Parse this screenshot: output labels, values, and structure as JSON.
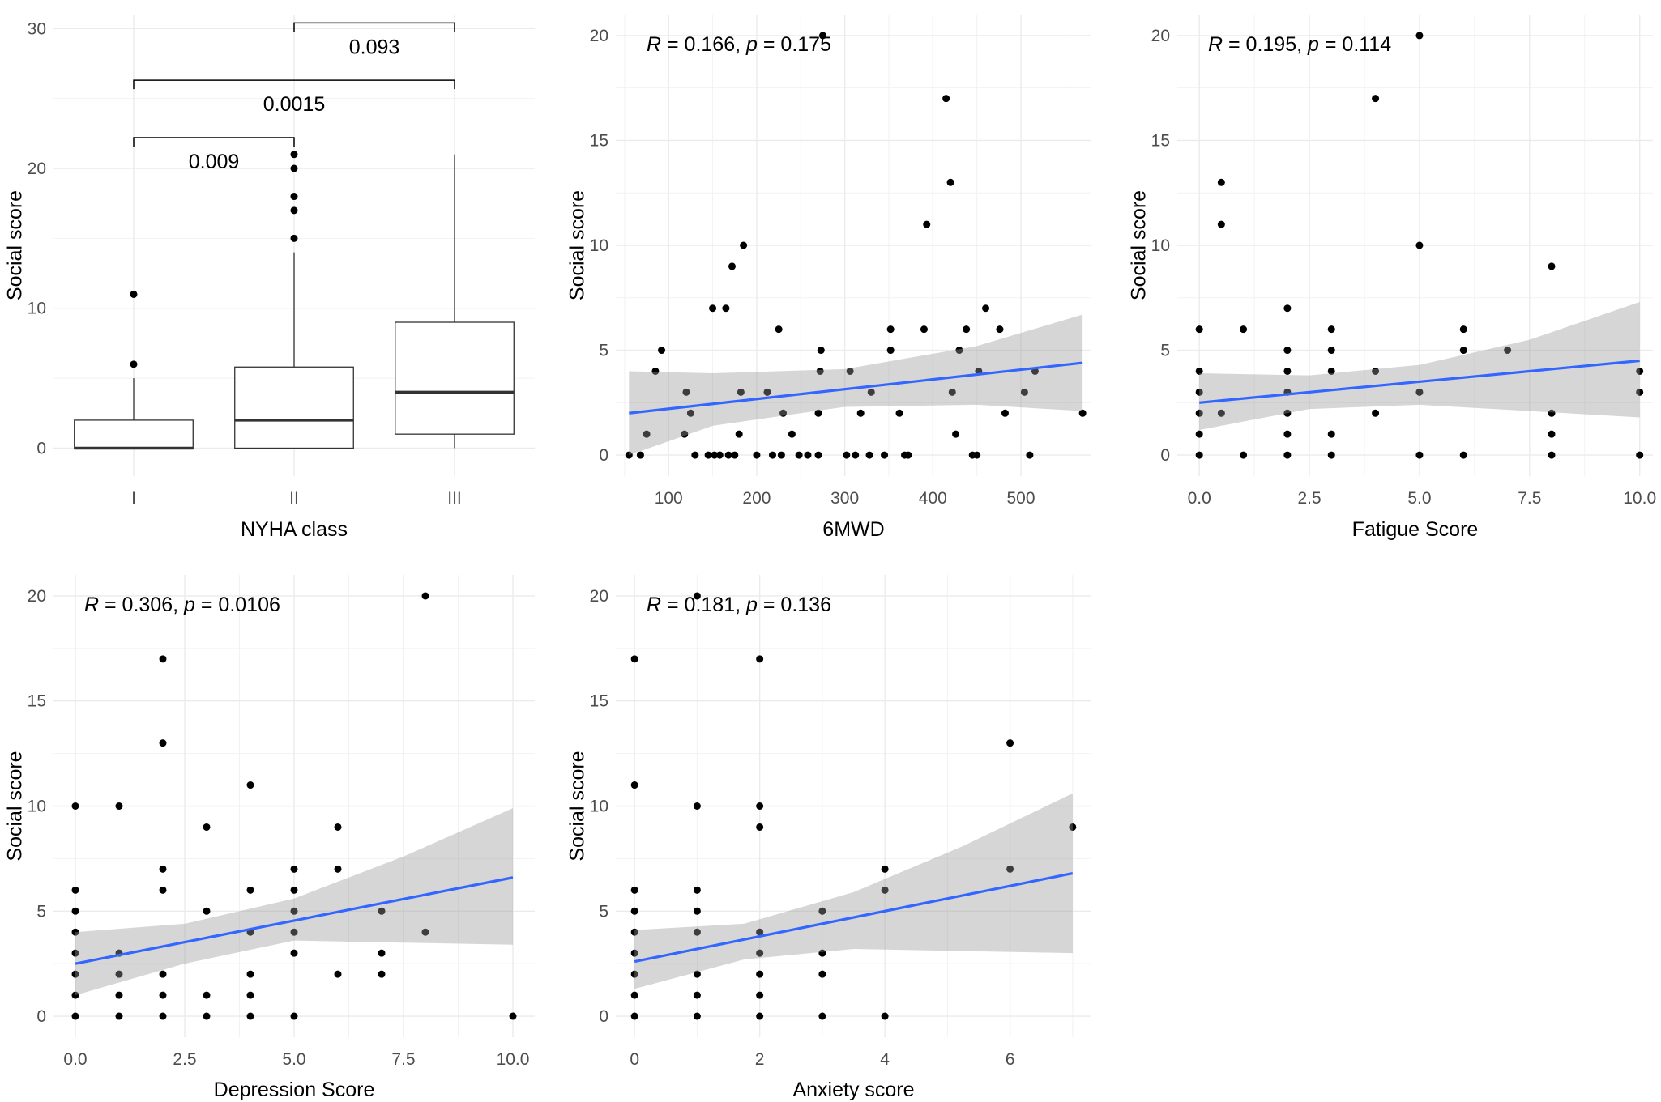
{
  "chart_data": [
    {
      "id": "p1",
      "type": "box",
      "xlabel": "NYHA class",
      "ylabel": "Social score",
      "ylim": [
        -2,
        31
      ],
      "yticks": [
        0,
        10,
        20,
        30
      ],
      "categories": [
        "I",
        "II",
        "III"
      ],
      "boxes": [
        {
          "category": "I",
          "q1": 0,
          "median": 0,
          "q3": 2,
          "whisker_low": 0,
          "whisker_high": 5,
          "outliers": [
            6,
            11
          ]
        },
        {
          "category": "II",
          "q1": 0,
          "median": 2,
          "q3": 5.8,
          "whisker_low": 0,
          "whisker_high": 14,
          "outliers": [
            15,
            17,
            18,
            20,
            21
          ]
        },
        {
          "category": "III",
          "q1": 1,
          "median": 4,
          "q3": 9,
          "whisker_low": 0,
          "whisker_high": 21,
          "outliers": []
        }
      ],
      "comparisons": [
        {
          "from": 0,
          "to": 1,
          "y": 22.2,
          "label": "0.009"
        },
        {
          "from": 0,
          "to": 2,
          "y": 26.3,
          "label": "0.0015"
        },
        {
          "from": 1,
          "to": 2,
          "y": 30.4,
          "label": "0.093"
        }
      ]
    },
    {
      "id": "p2",
      "type": "scatter",
      "xlabel": "6MWD",
      "ylabel": "Social score",
      "xlim": [
        40,
        580
      ],
      "ylim": [
        -1,
        21
      ],
      "xticks": [
        100,
        200,
        300,
        400,
        500
      ],
      "yticks": [
        0,
        5,
        10,
        15,
        20
      ],
      "stat": {
        "r_label": "R",
        "r_value": "0.166",
        "p_label": "p",
        "p_value": "0.175"
      },
      "fit": {
        "x0": 55,
        "x1": 570,
        "y0": 2.0,
        "y1": 4.4
      },
      "band": {
        "lower": [
          [
            55,
            0.0
          ],
          [
            150,
            1.4
          ],
          [
            300,
            2.3
          ],
          [
            450,
            2.4
          ],
          [
            570,
            2.1
          ]
        ],
        "upper": [
          [
            55,
            4.0
          ],
          [
            150,
            3.9
          ],
          [
            300,
            4.1
          ],
          [
            450,
            5.2
          ],
          [
            570,
            6.7
          ]
        ]
      },
      "points": [
        [
          55,
          0
        ],
        [
          68,
          0
        ],
        [
          75,
          1
        ],
        [
          85,
          4
        ],
        [
          92,
          5
        ],
        [
          118,
          1
        ],
        [
          120,
          3
        ],
        [
          125,
          2
        ],
        [
          130,
          0
        ],
        [
          145,
          0
        ],
        [
          150,
          7
        ],
        [
          152,
          0
        ],
        [
          158,
          0
        ],
        [
          165,
          7
        ],
        [
          168,
          0
        ],
        [
          172,
          9
        ],
        [
          175,
          0
        ],
        [
          182,
          3
        ],
        [
          180,
          1
        ],
        [
          185,
          10
        ],
        [
          200,
          0
        ],
        [
          212,
          3
        ],
        [
          218,
          0
        ],
        [
          225,
          6
        ],
        [
          228,
          0
        ],
        [
          230,
          2
        ],
        [
          240,
          1
        ],
        [
          248,
          0
        ],
        [
          258,
          0
        ],
        [
          270,
          0
        ],
        [
          270,
          2
        ],
        [
          272,
          4
        ],
        [
          273,
          5
        ],
        [
          275,
          20
        ],
        [
          302,
          0
        ],
        [
          306,
          4
        ],
        [
          312,
          0
        ],
        [
          318,
          2
        ],
        [
          328,
          0
        ],
        [
          330,
          3
        ],
        [
          345,
          0
        ],
        [
          352,
          5
        ],
        [
          352,
          6
        ],
        [
          362,
          2
        ],
        [
          368,
          0
        ],
        [
          372,
          0
        ],
        [
          390,
          6
        ],
        [
          393,
          11
        ],
        [
          415,
          17
        ],
        [
          420,
          13
        ],
        [
          422,
          3
        ],
        [
          426,
          1
        ],
        [
          430,
          5
        ],
        [
          438,
          6
        ],
        [
          445,
          0
        ],
        [
          450,
          0
        ],
        [
          452,
          4
        ],
        [
          460,
          7
        ],
        [
          476,
          6
        ],
        [
          482,
          2
        ],
        [
          504,
          3
        ],
        [
          510,
          0
        ],
        [
          516,
          4
        ],
        [
          570,
          2
        ]
      ]
    },
    {
      "id": "p3",
      "type": "scatter",
      "xlabel": "Fatigue Score",
      "ylabel": "Social score",
      "xlim": [
        -0.5,
        10.3
      ],
      "ylim": [
        -1,
        21
      ],
      "xticks": [
        0.0,
        2.5,
        5.0,
        7.5,
        10.0
      ],
      "xtick_labels": [
        "0.0",
        "2.5",
        "5.0",
        "7.5",
        "10.0"
      ],
      "yticks": [
        0,
        5,
        10,
        15,
        20
      ],
      "stat": {
        "r_label": "R",
        "r_value": "0.195",
        "p_label": "p",
        "p_value": "0.114"
      },
      "fit": {
        "x0": 0,
        "x1": 10,
        "y0": 2.5,
        "y1": 4.5
      },
      "band": {
        "lower": [
          [
            0,
            1.2
          ],
          [
            2.5,
            2.2
          ],
          [
            5.0,
            2.4
          ],
          [
            7.5,
            2.1
          ],
          [
            10,
            1.8
          ]
        ],
        "upper": [
          [
            0,
            3.9
          ],
          [
            2.5,
            3.8
          ],
          [
            5.0,
            4.3
          ],
          [
            7.5,
            5.5
          ],
          [
            10,
            7.3
          ]
        ]
      },
      "points": [
        [
          0,
          0
        ],
        [
          0,
          1
        ],
        [
          0,
          2
        ],
        [
          0,
          3
        ],
        [
          0,
          4
        ],
        [
          0,
          6
        ],
        [
          0.5,
          2
        ],
        [
          0.5,
          11
        ],
        [
          0.5,
          13
        ],
        [
          1,
          0
        ],
        [
          1,
          6
        ],
        [
          2,
          0
        ],
        [
          2,
          1
        ],
        [
          2,
          2
        ],
        [
          2,
          3
        ],
        [
          2,
          4
        ],
        [
          2,
          5
        ],
        [
          2,
          7
        ],
        [
          3,
          0
        ],
        [
          3,
          1
        ],
        [
          3,
          4
        ],
        [
          3,
          5
        ],
        [
          3,
          6
        ],
        [
          4,
          2
        ],
        [
          4,
          4
        ],
        [
          4,
          17
        ],
        [
          5,
          0
        ],
        [
          5,
          3
        ],
        [
          5,
          10
        ],
        [
          5,
          20
        ],
        [
          6,
          0
        ],
        [
          6,
          5
        ],
        [
          6,
          6
        ],
        [
          7,
          5
        ],
        [
          8,
          0
        ],
        [
          8,
          1
        ],
        [
          8,
          2
        ],
        [
          8,
          9
        ],
        [
          10,
          0
        ],
        [
          10,
          3
        ],
        [
          10,
          4
        ]
      ]
    },
    {
      "id": "p4",
      "type": "scatter",
      "xlabel": "Depression Score",
      "ylabel": "Social score",
      "xlim": [
        -0.5,
        10.5
      ],
      "ylim": [
        -1,
        21
      ],
      "xticks": [
        0.0,
        2.5,
        5.0,
        7.5,
        10.0
      ],
      "xtick_labels": [
        "0.0",
        "2.5",
        "5.0",
        "7.5",
        "10.0"
      ],
      "yticks": [
        0,
        5,
        10,
        15,
        20
      ],
      "stat": {
        "r_label": "R",
        "r_value": "0.306",
        "p_label": "p",
        "p_value": "0.0106"
      },
      "fit": {
        "x0": 0,
        "x1": 10,
        "y0": 2.5,
        "y1": 6.6
      },
      "band": {
        "lower": [
          [
            0,
            1.0
          ],
          [
            2.5,
            2.5
          ],
          [
            5.0,
            3.6
          ],
          [
            7.5,
            3.5
          ],
          [
            10,
            3.4
          ]
        ],
        "upper": [
          [
            0,
            4.0
          ],
          [
            2.5,
            4.4
          ],
          [
            5.0,
            5.6
          ],
          [
            7.5,
            7.6
          ],
          [
            10,
            9.9
          ]
        ]
      },
      "points": [
        [
          0,
          0
        ],
        [
          0,
          1
        ],
        [
          0,
          2
        ],
        [
          0,
          3
        ],
        [
          0,
          4
        ],
        [
          0,
          5
        ],
        [
          0,
          6
        ],
        [
          0,
          10
        ],
        [
          1,
          0
        ],
        [
          1,
          1
        ],
        [
          1,
          2
        ],
        [
          1,
          3
        ],
        [
          1,
          10
        ],
        [
          2,
          0
        ],
        [
          2,
          1
        ],
        [
          2,
          2
        ],
        [
          2,
          6
        ],
        [
          2,
          7
        ],
        [
          2,
          13
        ],
        [
          2,
          17
        ],
        [
          3,
          0
        ],
        [
          3,
          1
        ],
        [
          3,
          5
        ],
        [
          3,
          9
        ],
        [
          4,
          0
        ],
        [
          4,
          1
        ],
        [
          4,
          2
        ],
        [
          4,
          4
        ],
        [
          4,
          6
        ],
        [
          4,
          11
        ],
        [
          5,
          0
        ],
        [
          5,
          3
        ],
        [
          5,
          4
        ],
        [
          5,
          5
        ],
        [
          5,
          6
        ],
        [
          5,
          7
        ],
        [
          6,
          2
        ],
        [
          6,
          7
        ],
        [
          6,
          9
        ],
        [
          7,
          2
        ],
        [
          7,
          3
        ],
        [
          7,
          5
        ],
        [
          8,
          4
        ],
        [
          8,
          20
        ],
        [
          10,
          0
        ]
      ]
    },
    {
      "id": "p5",
      "type": "scatter",
      "xlabel": "Anxiety score",
      "ylabel": "Social score",
      "xlim": [
        -0.3,
        7.3
      ],
      "ylim": [
        -1,
        21
      ],
      "xticks": [
        0,
        2,
        4,
        6
      ],
      "yticks": [
        0,
        5,
        10,
        15,
        20
      ],
      "stat": {
        "r_label": "R",
        "r_value": "0.181",
        "p_label": "p",
        "p_value": "0.136"
      },
      "fit": {
        "x0": 0,
        "x1": 7,
        "y0": 2.6,
        "y1": 6.8
      },
      "band": {
        "lower": [
          [
            0,
            1.3
          ],
          [
            1.75,
            2.7
          ],
          [
            3.5,
            3.2
          ],
          [
            5.25,
            3.1
          ],
          [
            7,
            3.0
          ]
        ],
        "upper": [
          [
            0,
            4.1
          ],
          [
            1.75,
            4.4
          ],
          [
            3.5,
            5.9
          ],
          [
            5.25,
            8.1
          ],
          [
            7,
            10.6
          ]
        ]
      },
      "points": [
        [
          0,
          0
        ],
        [
          0,
          1
        ],
        [
          0,
          2
        ],
        [
          0,
          3
        ],
        [
          0,
          4
        ],
        [
          0,
          5
        ],
        [
          0,
          6
        ],
        [
          0,
          11
        ],
        [
          0,
          17
        ],
        [
          1,
          0
        ],
        [
          1,
          1
        ],
        [
          1,
          2
        ],
        [
          1,
          4
        ],
        [
          1,
          5
        ],
        [
          1,
          6
        ],
        [
          1,
          10
        ],
        [
          1,
          20
        ],
        [
          2,
          0
        ],
        [
          2,
          1
        ],
        [
          2,
          2
        ],
        [
          2,
          3
        ],
        [
          2,
          4
        ],
        [
          2,
          9
        ],
        [
          2,
          10
        ],
        [
          2,
          17
        ],
        [
          3,
          0
        ],
        [
          3,
          2
        ],
        [
          3,
          3
        ],
        [
          3,
          5
        ],
        [
          4,
          0
        ],
        [
          4,
          6
        ],
        [
          4,
          7
        ],
        [
          6,
          7
        ],
        [
          6,
          13
        ],
        [
          7,
          9
        ]
      ]
    }
  ]
}
